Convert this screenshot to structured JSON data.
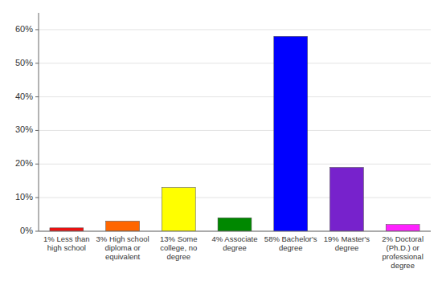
{
  "chart_data": {
    "type": "bar",
    "categories": [
      "1% Less than\nhigh school",
      "3% High school\ndiploma or\nequivalent",
      "13% Some\ncollege, no\ndegree",
      "4% Associate\ndegree",
      "58% Bachelor's\ndegree",
      "19% Master's\ndegree",
      "2% Doctoral\n(Ph.D.) or\nprofessional\ndegree"
    ],
    "values": [
      1,
      3,
      13,
      4,
      58,
      19,
      2
    ],
    "colors": [
      "#ee1111",
      "#ff6600",
      "#ffff00",
      "#008800",
      "#0000ff",
      "#7722cc",
      "#ff22ff"
    ],
    "ylim": [
      0,
      65
    ],
    "yticks": [
      {
        "value": 0,
        "label": "0%"
      },
      {
        "value": 10,
        "label": "10%"
      },
      {
        "value": 20,
        "label": "20%"
      },
      {
        "value": 30,
        "label": "30%"
      },
      {
        "value": 40,
        "label": "40%"
      },
      {
        "value": 50,
        "label": "50%"
      },
      {
        "value": 60,
        "label": "60%"
      }
    ],
    "grid": true
  }
}
